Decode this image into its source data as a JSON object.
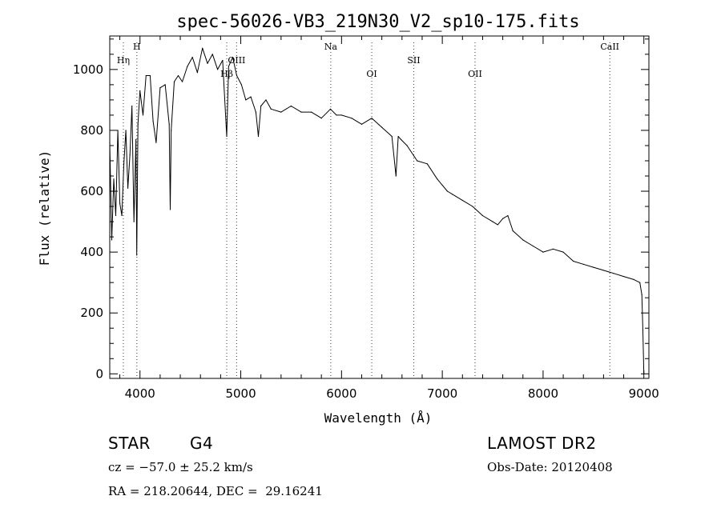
{
  "chart_data": {
    "type": "line",
    "title": "spec-56026-VB3_219N30_V2_sp10-175.fits",
    "xlabel": "Wavelength (Å)",
    "ylabel": "Flux (relative)",
    "xlim": [
      3700,
      9050
    ],
    "ylim": [
      -15,
      1110
    ],
    "x_ticks": [
      4000,
      5000,
      6000,
      7000,
      8000,
      9000
    ],
    "y_ticks": [
      0,
      200,
      400,
      600,
      800,
      1000
    ],
    "grid": false,
    "legend": "none",
    "series": [
      {
        "x": [
          3700,
          3720,
          3740,
          3760,
          3780,
          3800,
          3820,
          3840,
          3860,
          3880,
          3900,
          3920,
          3940,
          3960,
          3968,
          3980,
          4000,
          4030,
          4060,
          4101,
          4130,
          4160,
          4200,
          4250,
          4290,
          4300,
          4310,
          4340,
          4380,
          4420,
          4470,
          4520,
          4570,
          4620,
          4670,
          4720,
          4770,
          4820,
          4861,
          4880,
          4920,
          4960,
          5007,
          5050,
          5100,
          5150,
          5175,
          5200,
          5250,
          5300,
          5400,
          5500,
          5600,
          5700,
          5800,
          5890,
          5950,
          6000,
          6100,
          6200,
          6300,
          6400,
          6500,
          6540,
          6563,
          6590,
          6650,
          6750,
          6850,
          6950,
          7000,
          7050,
          7100,
          7200,
          7300,
          7400,
          7500,
          7550,
          7600,
          7650,
          7700,
          7800,
          7900,
          8000,
          8100,
          8200,
          8300,
          8400,
          8500,
          8600,
          8700,
          8800,
          8900,
          8960,
          8980,
          8990,
          9000
        ],
        "y": [
          760,
          440,
          640,
          520,
          800,
          560,
          520,
          690,
          800,
          610,
          720,
          880,
          500,
          770,
          390,
          820,
          930,
          850,
          980,
          980,
          830,
          760,
          940,
          950,
          820,
          540,
          800,
          960,
          980,
          960,
          1010,
          1040,
          990,
          1070,
          1020,
          1050,
          1000,
          1030,
          780,
          1010,
          1040,
          980,
          950,
          900,
          910,
          860,
          780,
          880,
          900,
          870,
          860,
          880,
          860,
          860,
          840,
          870,
          850,
          850,
          840,
          820,
          840,
          810,
          780,
          650,
          780,
          770,
          750,
          700,
          690,
          640,
          620,
          600,
          590,
          570,
          550,
          520,
          500,
          490,
          510,
          520,
          470,
          440,
          420,
          400,
          410,
          400,
          370,
          360,
          350,
          340,
          330,
          320,
          310,
          300,
          260,
          140,
          0
        ]
      }
    ],
    "line_markers": [
      {
        "label": "Hη",
        "wavelength": 3835,
        "label_row": "upper"
      },
      {
        "label": "H",
        "wavelength": 3969,
        "label_row": "top"
      },
      {
        "label": "Hβ",
        "wavelength": 4861,
        "label_row": "lower"
      },
      {
        "label": "OIII",
        "wavelength": 4959,
        "label_row": "upper"
      },
      {
        "label": "Na",
        "wavelength": 5893,
        "label_row": "top"
      },
      {
        "label": "OI",
        "wavelength": 6300,
        "label_row": "lower"
      },
      {
        "label": "SII",
        "wavelength": 6717,
        "label_row": "upper"
      },
      {
        "label": "OII",
        "wavelength": 7325,
        "label_row": "lower"
      },
      {
        "label": "CaII",
        "wavelength": 8662,
        "label_row": "top"
      }
    ],
    "colors": {
      "spectrum": "#000000",
      "line_markers": "#cc0000",
      "axes": "#000000"
    }
  },
  "info": {
    "object_class": "STAR",
    "subclass": "G4",
    "survey": "LAMOST DR2",
    "cz": "cz = −57.0 ± 25.2 km/s",
    "obs_date": "Obs-Date: 20120408",
    "coords": "RA = 218.20644, DEC =  29.16241"
  }
}
